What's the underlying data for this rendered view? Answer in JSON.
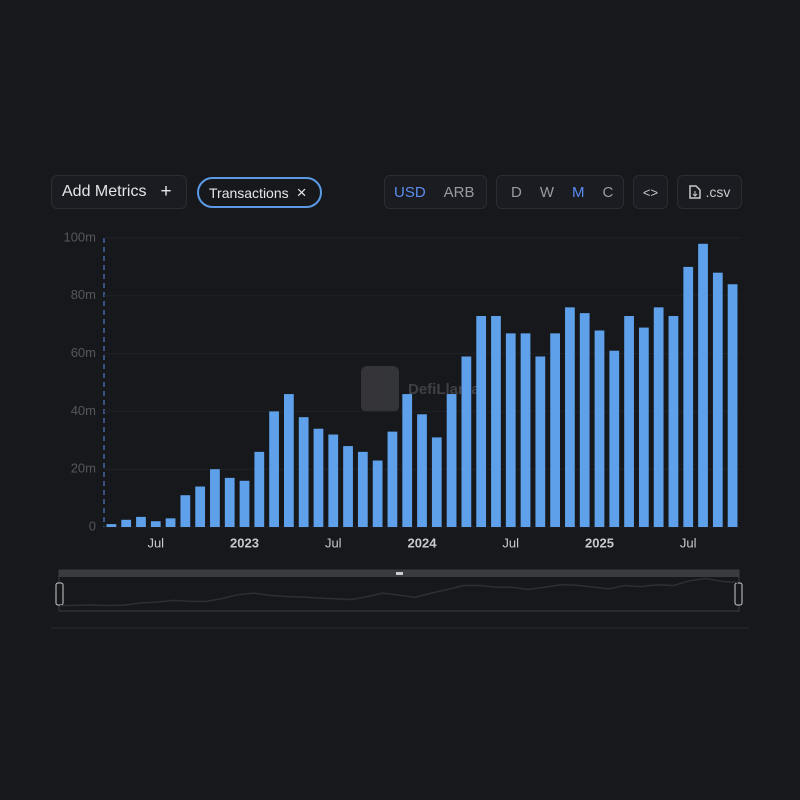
{
  "controls": {
    "add_metrics": "Add Metrics",
    "add_icon": "+",
    "metric_tag": "Transactions",
    "remove_icon": "×",
    "currency": [
      "USD",
      "ARB"
    ],
    "currency_selected": 0,
    "intervals": [
      "D",
      "W",
      "M",
      "C"
    ],
    "interval_selected": 2,
    "embed": "<>",
    "csv": ".csv",
    "watermark": "DefiLlama"
  },
  "chart_data": {
    "type": "bar",
    "color": "#5ea1ea",
    "categories": [
      null,
      null,
      null,
      "Jul",
      null,
      null,
      null,
      null,
      null,
      "2023",
      null,
      null,
      null,
      null,
      null,
      "Jul",
      null,
      null,
      null,
      null,
      null,
      "2024",
      null,
      null,
      null,
      null,
      null,
      "Jul",
      null,
      null,
      null,
      null,
      null,
      "2025",
      null,
      null,
      null,
      null,
      null,
      "Jul",
      null,
      null,
      null
    ],
    "values": [
      1,
      2.5,
      3.5,
      2,
      3,
      11,
      14,
      20,
      17,
      16,
      26,
      40,
      46,
      38,
      34,
      32,
      28,
      26,
      23,
      33,
      46,
      39,
      31,
      46,
      59,
      73,
      73,
      67,
      67,
      59,
      67,
      76,
      74,
      68,
      61,
      73,
      69,
      76,
      73,
      90,
      98,
      88,
      84
    ],
    "ylim": [
      0,
      100
    ],
    "yticks": [
      0,
      {
        "value": 20,
        "label": "20m"
      },
      {
        "value": 40,
        "label": "40m"
      },
      {
        "value": 60,
        "label": "60m"
      },
      {
        "value": 80,
        "label": "80m"
      },
      {
        "value": 100,
        "label": "100m"
      }
    ],
    "grid": true
  }
}
